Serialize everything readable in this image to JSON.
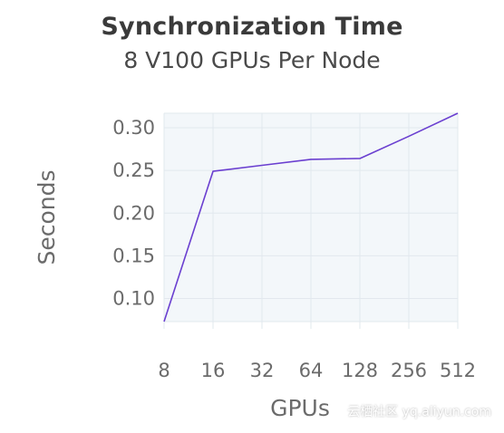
{
  "chart_data": {
    "type": "line",
    "title": "Synchronization Time",
    "subtitle": "8 V100 GPUs Per Node",
    "xlabel": "GPUs",
    "ylabel": "Seconds",
    "categories": [
      "8",
      "16",
      "32",
      "64",
      "128",
      "256",
      "512"
    ],
    "values": [
      0.073,
      0.249,
      0.256,
      0.263,
      0.264,
      0.29,
      0.317
    ],
    "yticks": [
      "0.10",
      "0.15",
      "0.20",
      "0.25",
      "0.30"
    ],
    "ylim": [
      0.073,
      0.317
    ],
    "grid": true,
    "line_color": "#6a3fd0",
    "plot_background": "#f3f7fa",
    "grid_color": "#e2e8ee"
  },
  "watermark": "云栖社区 yq.aliyun.com"
}
